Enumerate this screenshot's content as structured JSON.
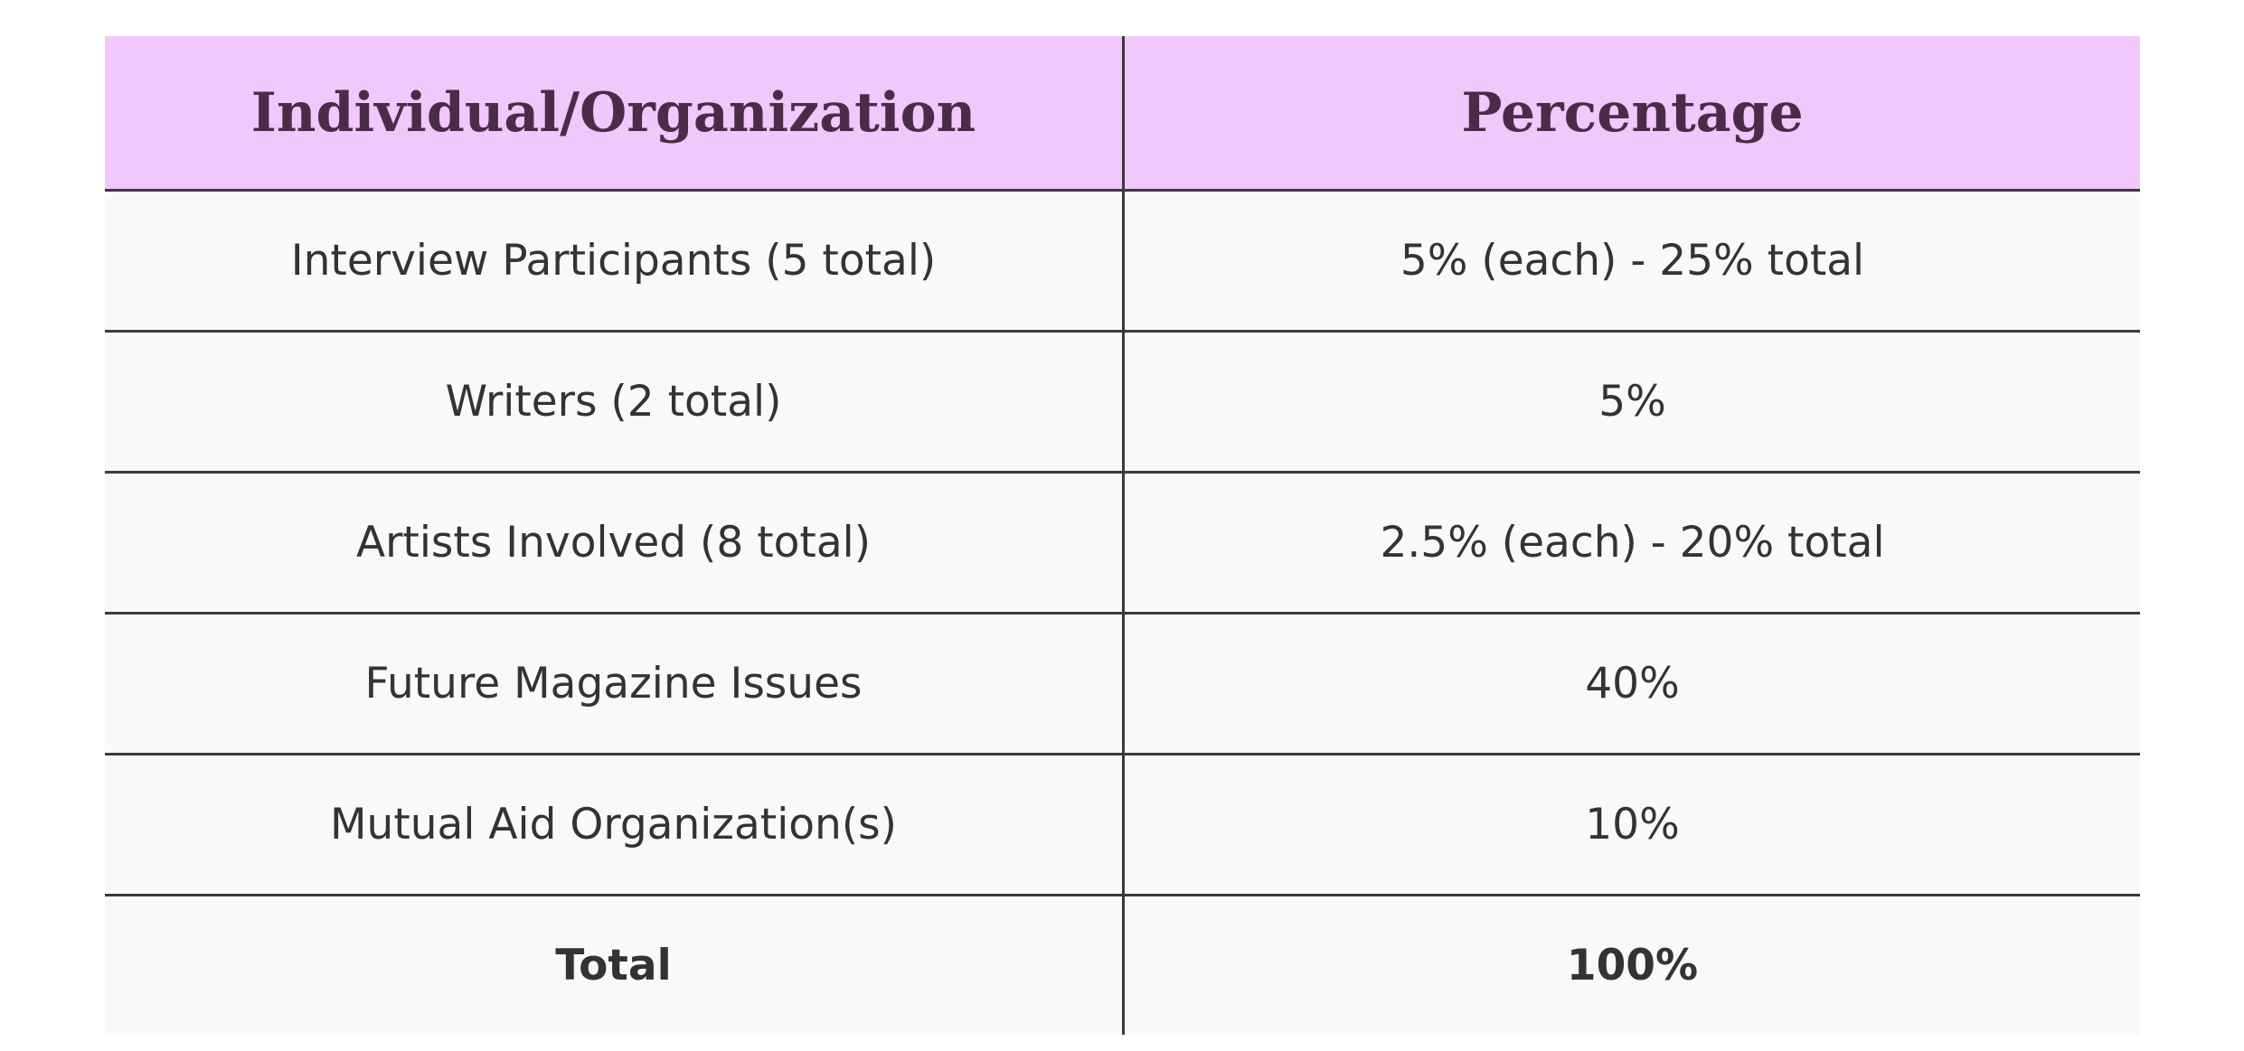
{
  "table": {
    "header": [
      "Individual/Organization",
      "Percentage"
    ],
    "rows": [
      [
        "Interview Participants (5 total)",
        "5% (each) - 25% total"
      ],
      [
        "Writers (2 total)",
        "5%"
      ],
      [
        "Artists Involved (8 total)",
        "2.5% (each) - 20% total"
      ],
      [
        "Future Magazine Issues",
        "40%"
      ],
      [
        "Mutual Aid Organization(s)",
        "10%"
      ],
      [
        "Total",
        "100%"
      ]
    ]
  }
}
